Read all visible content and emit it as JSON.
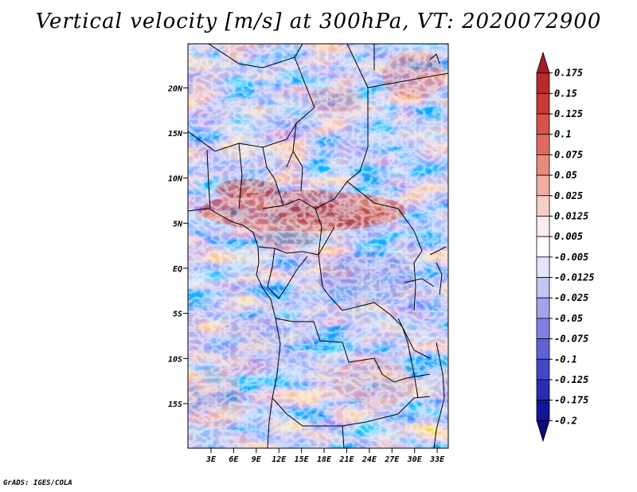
{
  "title": "Vertical velocity [m/s] at 300hPa, VT: 2020072900",
  "footer": "GrADS: IGES/COLA",
  "lat_labels": [
    "20N",
    "15N",
    "10N",
    "5N",
    "EQ",
    "5S",
    "10S",
    "15S"
  ],
  "lat_values": [
    20,
    15,
    10,
    5,
    0,
    -5,
    -10,
    -15
  ],
  "lon_labels": [
    "3E",
    "6E",
    "9E",
    "12E",
    "15E",
    "18E",
    "21E",
    "24E",
    "27E",
    "30E",
    "33E"
  ],
  "lon_values": [
    3,
    6,
    9,
    12,
    15,
    18,
    21,
    24,
    27,
    30,
    33
  ],
  "colorbar": {
    "labels": [
      "0.175",
      "0.15",
      "0.125",
      "0.1",
      "0.075",
      "0.05",
      "0.025",
      "0.0125",
      "0.005",
      "-0.005",
      "-0.0125",
      "-0.025",
      "-0.05",
      "-0.075",
      "-0.1",
      "-0.125",
      "-0.175",
      "-0.2"
    ],
    "colors": [
      "#a51c24",
      "#b82a2c",
      "#c93a36",
      "#d65148",
      "#e06a5e",
      "#e98a80",
      "#f2aca4",
      "#f8cdc8",
      "#fdeceb",
      "#ffffff",
      "#e4e4fa",
      "#c4c4f4",
      "#a2a2ec",
      "#8080e2",
      "#6262d6",
      "#4646c6",
      "#2c2cb0",
      "#141496",
      "#0a0a7a"
    ]
  }
}
